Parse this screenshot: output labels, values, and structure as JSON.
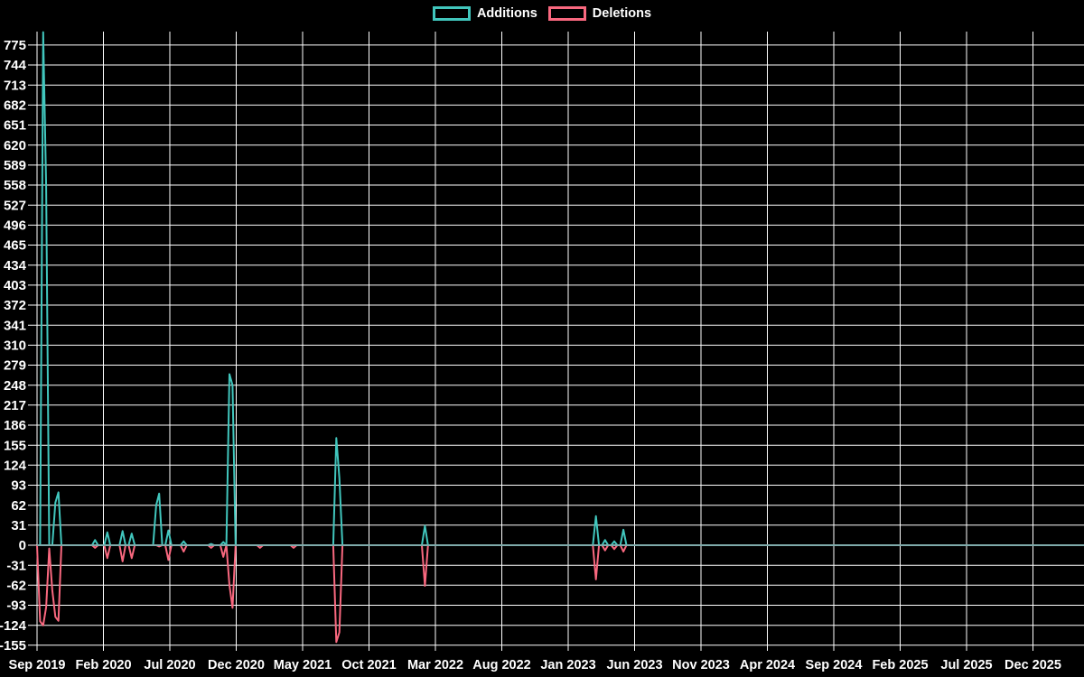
{
  "chart_data": {
    "type": "line",
    "title": "",
    "background": "#000000",
    "grid": {
      "visible": true,
      "color": "#ffffff"
    },
    "legend_position": "top-center",
    "zero_line_color": "#7fabab",
    "series": [
      {
        "name": "Additions",
        "color": "#41c6bd"
      },
      {
        "name": "Deletions",
        "color": "#f9687f"
      }
    ],
    "x_axis": {
      "tick_labels": [
        "Sep 2019",
        "Feb 2020",
        "Jul 2020",
        "Dec 2020",
        "May 2021",
        "Oct 2021",
        "Mar 2022",
        "Aug 2022",
        "Jan 2023",
        "Jun 2023",
        "Nov 2023",
        "Apr 2024",
        "Sep 2024",
        "Feb 2025",
        "Jul 2025",
        "Dec 2025"
      ],
      "unit": "weeks",
      "weeks_per_tick": 21.74,
      "total_weeks": 342
    },
    "y_axis": {
      "ticks": [
        775,
        744,
        713,
        682,
        651,
        620,
        589,
        558,
        527,
        496,
        465,
        434,
        403,
        372,
        341,
        310,
        279,
        248,
        217,
        186,
        155,
        124,
        93,
        62,
        31,
        0,
        -31,
        -62,
        -93,
        -124,
        -155
      ],
      "min": -155,
      "max": 775,
      "step": 31,
      "plot_top_value": 806
    },
    "baseline": 0,
    "nonzero_points": [
      {
        "week": 1,
        "additions": 0,
        "deletions": -118
      },
      {
        "week": 2,
        "additions": 795,
        "deletions": -124
      },
      {
        "week": 3,
        "additions": 555,
        "deletions": -96
      },
      {
        "week": 4,
        "additions": 0,
        "deletions": -5
      },
      {
        "week": 5,
        "additions": 0,
        "deletions": -70
      },
      {
        "week": 6,
        "additions": 66,
        "deletions": -111
      },
      {
        "week": 7,
        "additions": 82,
        "deletions": -117
      },
      {
        "week": 19,
        "additions": 8,
        "deletions": -4
      },
      {
        "week": 23,
        "additions": 20,
        "deletions": -20
      },
      {
        "week": 28,
        "additions": 22,
        "deletions": -25
      },
      {
        "week": 31,
        "additions": 18,
        "deletions": -20
      },
      {
        "week": 39,
        "additions": 62,
        "deletions": 0
      },
      {
        "week": 40,
        "additions": 80,
        "deletions": -2
      },
      {
        "week": 43,
        "additions": 23,
        "deletions": -23
      },
      {
        "week": 48,
        "additions": 6,
        "deletions": -10
      },
      {
        "week": 57,
        "additions": 2,
        "deletions": -4
      },
      {
        "week": 61,
        "additions": 5,
        "deletions": -18
      },
      {
        "week": 63,
        "additions": 265,
        "deletions": -62
      },
      {
        "week": 64,
        "additions": 248,
        "deletions": -97
      },
      {
        "week": 73,
        "additions": 0,
        "deletions": -4
      },
      {
        "week": 84,
        "additions": 0,
        "deletions": -4
      },
      {
        "week": 98,
        "additions": 166,
        "deletions": -150
      },
      {
        "week": 99,
        "additions": 104,
        "deletions": -135
      },
      {
        "week": 127,
        "additions": 30,
        "deletions": -63
      },
      {
        "week": 183,
        "additions": 45,
        "deletions": -53
      },
      {
        "week": 186,
        "additions": 8,
        "deletions": -8
      },
      {
        "week": 189,
        "additions": 6,
        "deletions": -6
      },
      {
        "week": 192,
        "additions": 24,
        "deletions": -10
      }
    ]
  }
}
